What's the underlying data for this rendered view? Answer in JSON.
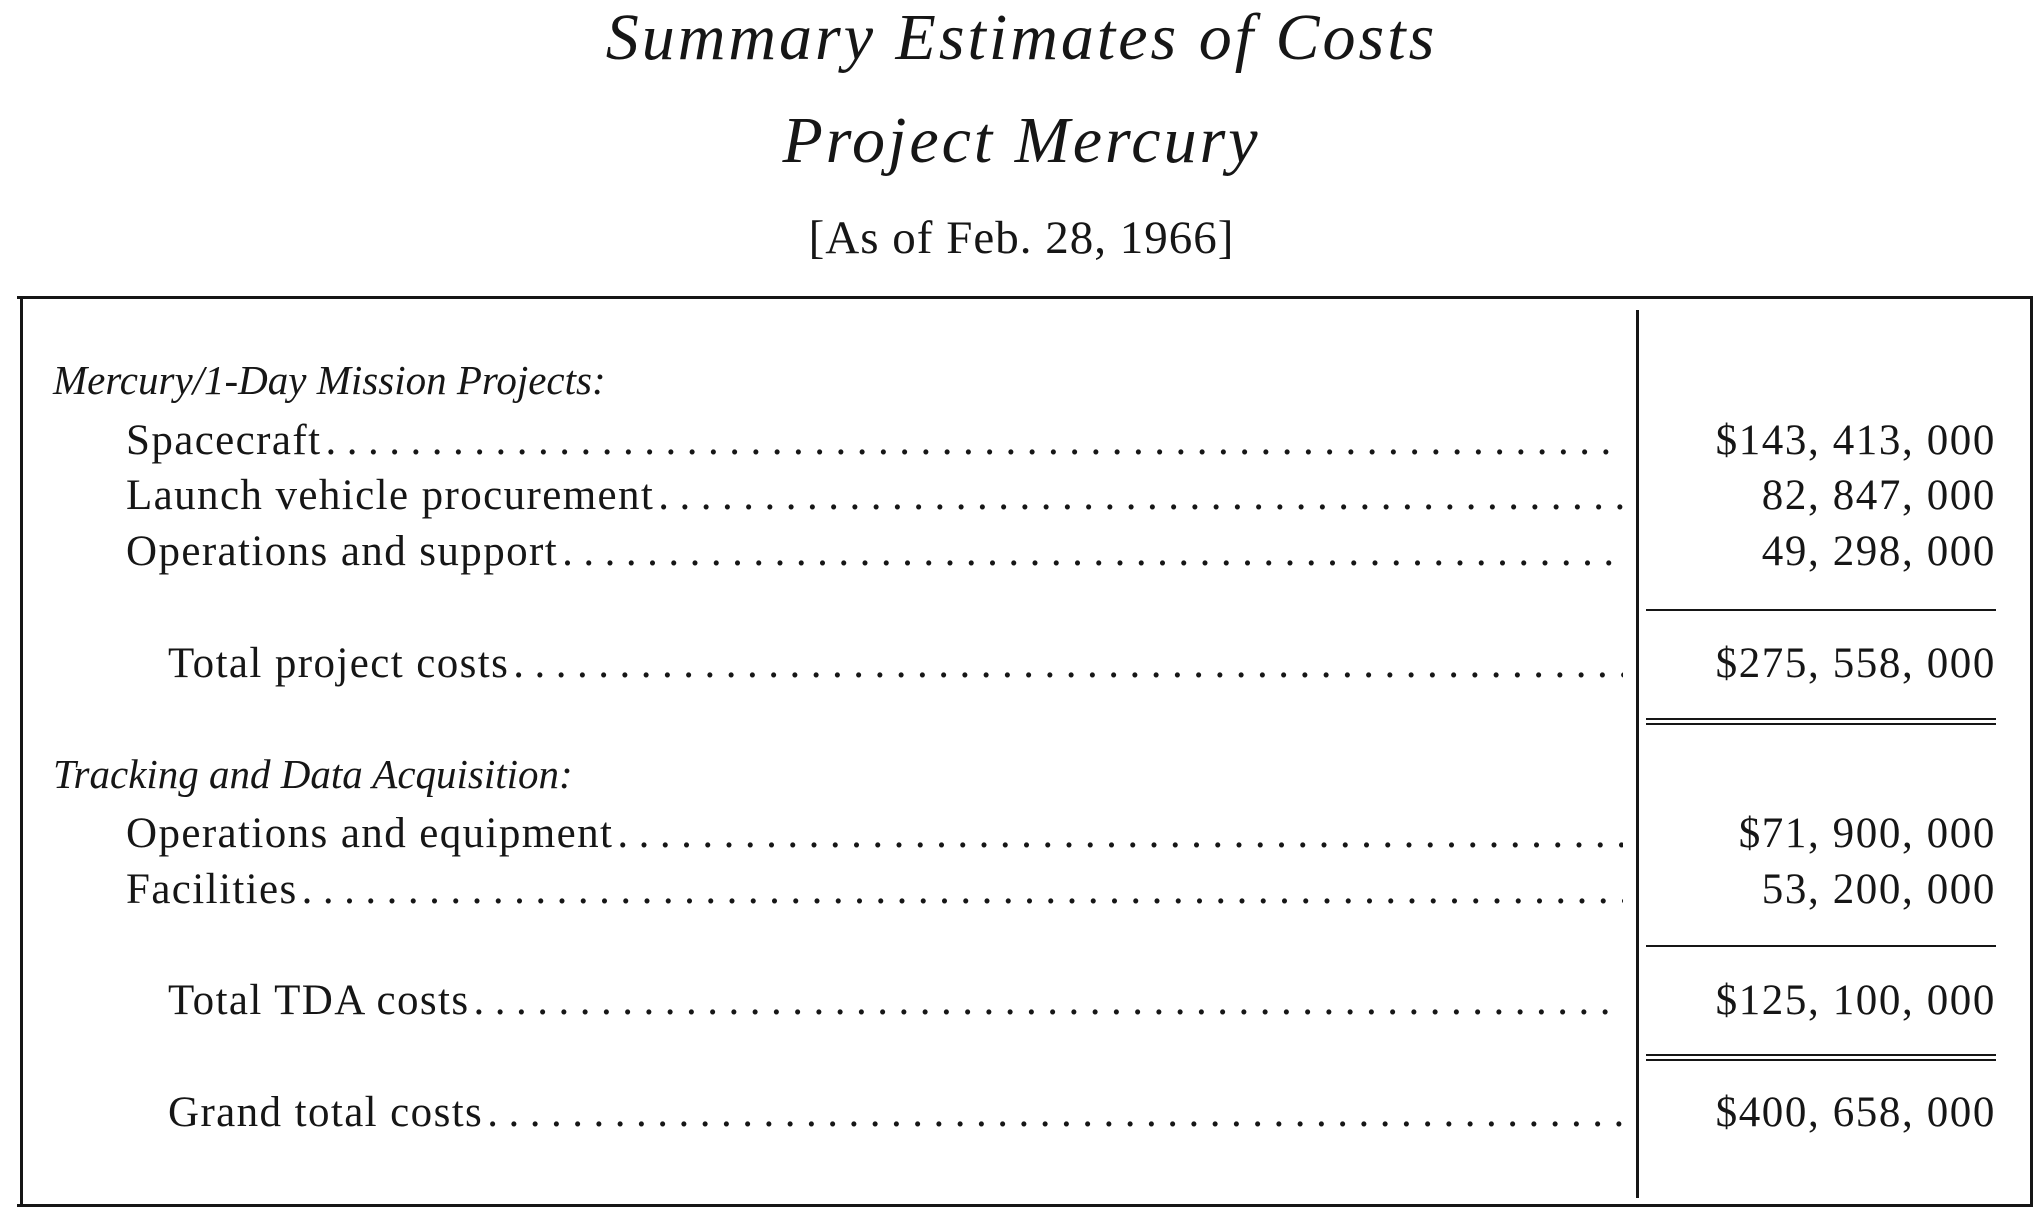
{
  "title": {
    "line1": "Summary Estimates of Costs",
    "line2": "Project Mercury",
    "as_of": "[As of Feb. 28, 1966]"
  },
  "sections": [
    {
      "heading": "Mercury/1-Day Mission Projects:",
      "items": [
        {
          "label": "Spacecraft",
          "amount": "$143, 413, 000"
        },
        {
          "label": "Launch vehicle procurement",
          "amount": "82, 847, 000"
        },
        {
          "label": "Operations and support",
          "amount": "49, 298, 000"
        }
      ],
      "total": {
        "label": "Total project costs",
        "amount": "$275, 558, 000"
      }
    },
    {
      "heading": "Tracking and Data Acquisition:",
      "items": [
        {
          "label": "Operations and equipment",
          "amount": "$71, 900, 000"
        },
        {
          "label": "Facilities",
          "amount": "53, 200, 000"
        }
      ],
      "total": {
        "label": "Total TDA costs",
        "amount": "$125, 100, 000"
      }
    }
  ],
  "grand_total": {
    "label": "Grand total costs",
    "amount": "$400, 658, 000"
  }
}
